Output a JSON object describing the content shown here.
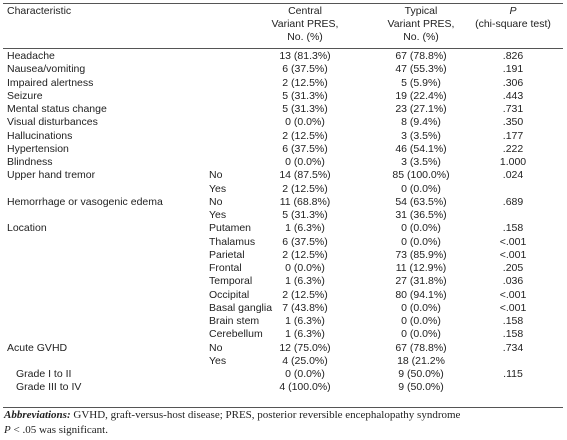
{
  "table": {
    "header": {
      "characteristic": "Characteristic",
      "central": [
        "Central",
        "Variant PRES,",
        "No. (%)"
      ],
      "typical": [
        "Typical",
        "Variant PRES,",
        "No. (%)"
      ],
      "p": [
        "P",
        "(chi-square test)"
      ]
    },
    "rows": [
      {
        "label": "Headache",
        "central": "13 (81.3%)",
        "typical": "67 (78.8%)",
        "p": ".826"
      },
      {
        "label": "Nausea/vomiting",
        "central": "6 (37.5%)",
        "typical": "47 (55.3%)",
        "p": ".191"
      },
      {
        "label": "Impaired alertness",
        "central": "2 (12.5%)",
        "typical": "5 (5.9%)",
        "p": ".306"
      },
      {
        "label": "Seizure",
        "central": "5 (31.3%)",
        "typical": "19 (22.4%)",
        "p": ".443"
      },
      {
        "label": "Mental status change",
        "central": "5 (31.3%)",
        "typical": "23 (27.1%)",
        "p": ".731"
      },
      {
        "label": "Visual disturbances",
        "central": "0 (0.0%)",
        "typical": "8 (9.4%)",
        "p": ".350"
      },
      {
        "label": "Hallucinations",
        "central": "2 (12.5%)",
        "typical": "3 (3.5%)",
        "p": ".177"
      },
      {
        "label": "Hypertension",
        "central": "6 (37.5%)",
        "typical": "46 (54.1%)",
        "p": ".222"
      },
      {
        "label": "Blindness",
        "central": "0 (0.0%)",
        "typical": "3 (3.5%)",
        "p": "1.000"
      },
      {
        "label": "Upper hand tremor",
        "sub": "No",
        "central": "14 (87.5%)",
        "typical": "85 (100.0%)",
        "p": ".024"
      },
      {
        "sub": "Yes",
        "central": "2 (12.5%)",
        "typical": "0 (0.0%)"
      },
      {
        "label": "Hemorrhage or vasogenic edema",
        "sub": "No",
        "central": "11 (68.8%)",
        "typical": "54 (63.5%)",
        "p": ".689"
      },
      {
        "sub": "Yes",
        "central": "5 (31.3%)",
        "typical": "31 (36.5%)"
      },
      {
        "label": "Location",
        "sub": "Putamen",
        "central": "1 (6.3%)",
        "typical": "0 (0.0%)",
        "p": ".158"
      },
      {
        "sub": "Thalamus",
        "central": "6 (37.5%)",
        "typical": "0 (0.0%)",
        "p": "<.001"
      },
      {
        "sub": "Parietal",
        "central": "2 (12.5%)",
        "typical": "73 (85.9%)",
        "p": "<.001"
      },
      {
        "sub": "Frontal",
        "central": "0 (0.0%)",
        "typical": "11 (12.9%)",
        "p": ".205"
      },
      {
        "sub": "Temporal",
        "central": "1 (6.3%)",
        "typical": "27 (31.8%)",
        "p": ".036"
      },
      {
        "sub": "Occipital",
        "central": "2 (12.5%)",
        "typical": "80 (94.1%)",
        "p": "<.001"
      },
      {
        "sub": "Basal ganglia",
        "central": "7 (43.8%)",
        "typical": "0 (0.0%)",
        "p": "<.001"
      },
      {
        "sub": "Brain stem",
        "central": "1 (6.3%)",
        "typical": "0 (0.0%)",
        "p": ".158"
      },
      {
        "sub": "Cerebellum",
        "central": "1 (6.3%)",
        "typical": "0 (0.0%)",
        "p": ".158"
      },
      {
        "label": "Acute GVHD",
        "sub": "No",
        "central": "12 (75.0%)",
        "typical": "67 (78.8%)",
        "p": ".734"
      },
      {
        "sub": "Yes",
        "central": "4 (25.0%)",
        "typical": "18 (21.2%"
      },
      {
        "label": "Grade I to II",
        "indent": true,
        "central": "0 (0.0%)",
        "typical": "9 (50.0%)",
        "p": ".115"
      },
      {
        "label": "Grade III to IV",
        "indent": true,
        "central": "4 (100.0%)",
        "typical": "9 (50.0%)"
      }
    ],
    "footnotes": {
      "abbreviations_label": "Abbreviations:",
      "abbreviations": " GVHD, graft-versus-host disease; PRES, posterior reversible encephalopathy syndrome",
      "significance_p": "P",
      "significance": " < .05 was significant."
    }
  }
}
